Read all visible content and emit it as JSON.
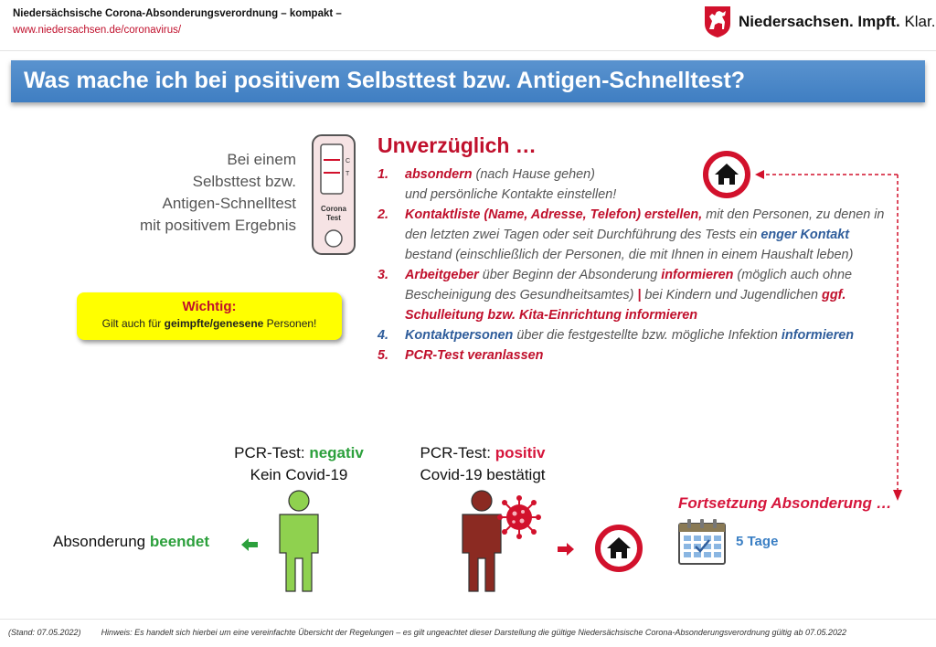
{
  "header": {
    "title": "Niedersächsische Corona-Absonderungsverordnung – kompakt –",
    "link": "www.niedersachsen.de/coronavirus/",
    "logo_bold": "Niedersachsen.",
    "logo_bold2": "Impft.",
    "logo_rest": "Klar."
  },
  "banner": {
    "title": "Was mache ich bei positivem Selbsttest bzw. Antigen-Schnelltest?"
  },
  "lead": {
    "lines": [
      "Bei einem",
      "Selbsttest bzw.",
      "Antigen-Schnelltest",
      "mit positivem Ergebnis"
    ]
  },
  "test_device": {
    "c": "C",
    "t": "T",
    "label1": "Corona",
    "label2": "Test"
  },
  "wichtig": {
    "title": "Wichtig:",
    "text_pre": "Gilt auch für ",
    "text_bold": "geimpfte/genesene",
    "text_post": " Personen!"
  },
  "main": {
    "title": "Unverzüglich …",
    "steps": [
      {
        "num": "1.",
        "parts": [
          "absondern",
          " (nach Hause gehen)",
          "und persönliche Kontakte einstellen!"
        ]
      },
      {
        "num": "2.",
        "parts": [
          "Kontaktliste (Name, Adresse, Telefon) erstellen,",
          " mit den Personen, zu denen in den letzten zwei Tagen oder seit Durchführung des Tests ein ",
          "enger Kontakt",
          " bestand (einschließlich der Personen, die mit Ihnen in einem Haushalt leben)"
        ]
      },
      {
        "num": "3.",
        "parts": [
          "Arbeitgeber",
          " über Beginn der Absonderung ",
          "informieren",
          " (möglich auch ohne Bescheinigung des Gesundheitsamtes) ",
          "|",
          " bei Kindern und Jugendlichen ",
          "ggf. Schulleitung bzw. Kita-Einrichtung informieren"
        ]
      },
      {
        "num": "4.",
        "parts": [
          "Kontaktpersonen",
          " über die festgestellte bzw. mögliche Infektion ",
          "informieren"
        ]
      },
      {
        "num": "5.",
        "parts": [
          "PCR-Test veranlassen"
        ]
      }
    ]
  },
  "pcr_negative": {
    "prefix": "PCR-Test: ",
    "result": "negativ",
    "line2": "Kein Covid-19"
  },
  "pcr_positive": {
    "prefix": "PCR-Test: ",
    "result": "positiv",
    "line2": "Covid-19 bestätigt"
  },
  "beendet": {
    "text": "Absonderung ",
    "bold": "beendet"
  },
  "fortsetzung": {
    "title": "Fortsetzung Absonderung …",
    "days": "5 Tage"
  },
  "footer": {
    "stand": "(Stand: 07.05.2022)",
    "hinweis": "Hinweis: Es handelt sich hierbei um eine vereinfachte Übersicht der Regelungen – es gilt ungeachtet dieser Darstellung die gültige Niedersächsische Corona-Absonderungsverordnung gültig ab 07.05.2022"
  },
  "colors": {
    "brand_red": "#c0102c",
    "banner_blue": "#4a86c8",
    "positive_green": "#2ca03c",
    "person_negative": "#8fd14f",
    "person_positive": "#8b2a22",
    "highlight_yellow": "#ffff00"
  },
  "icons": [
    "niedersachsen-horse-crest-icon",
    "home-prohibition-icon",
    "virus-icon",
    "calendar-icon",
    "arrow-left-icon",
    "arrow-right-icon",
    "person-icon"
  ]
}
